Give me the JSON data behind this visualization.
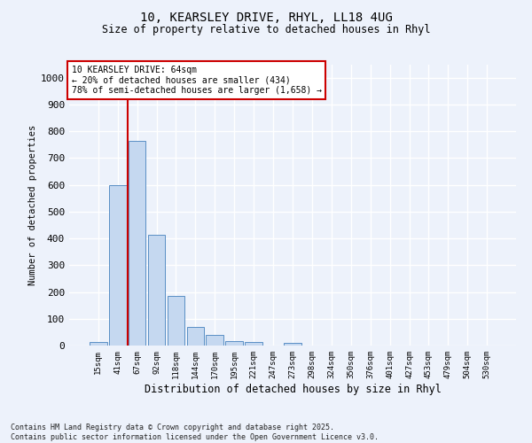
{
  "title_line1": "10, KEARSLEY DRIVE, RHYL, LL18 4UG",
  "title_line2": "Size of property relative to detached houses in Rhyl",
  "xlabel": "Distribution of detached houses by size in Rhyl",
  "ylabel": "Number of detached properties",
  "bar_labels": [
    "15sqm",
    "41sqm",
    "67sqm",
    "92sqm",
    "118sqm",
    "144sqm",
    "170sqm",
    "195sqm",
    "221sqm",
    "247sqm",
    "273sqm",
    "298sqm",
    "324sqm",
    "350sqm",
    "376sqm",
    "401sqm",
    "427sqm",
    "453sqm",
    "479sqm",
    "504sqm",
    "530sqm"
  ],
  "bar_values": [
    13,
    600,
    765,
    415,
    185,
    70,
    40,
    18,
    14,
    0,
    10,
    0,
    0,
    0,
    0,
    0,
    0,
    0,
    0,
    0,
    0
  ],
  "bar_color": "#c5d8f0",
  "bar_edge_color": "#5a8fc5",
  "annotation_box_text": "10 KEARSLEY DRIVE: 64sqm\n← 20% of detached houses are smaller (434)\n78% of semi-detached houses are larger (1,658) →",
  "vertical_line_color": "#cc0000",
  "vertical_line_x": 1.5,
  "ylim": [
    0,
    1050
  ],
  "yticks": [
    0,
    100,
    200,
    300,
    400,
    500,
    600,
    700,
    800,
    900,
    1000
  ],
  "background_color": "#edf2fb",
  "grid_color": "#ffffff",
  "footnote": "Contains HM Land Registry data © Crown copyright and database right 2025.\nContains public sector information licensed under the Open Government Licence v3.0."
}
